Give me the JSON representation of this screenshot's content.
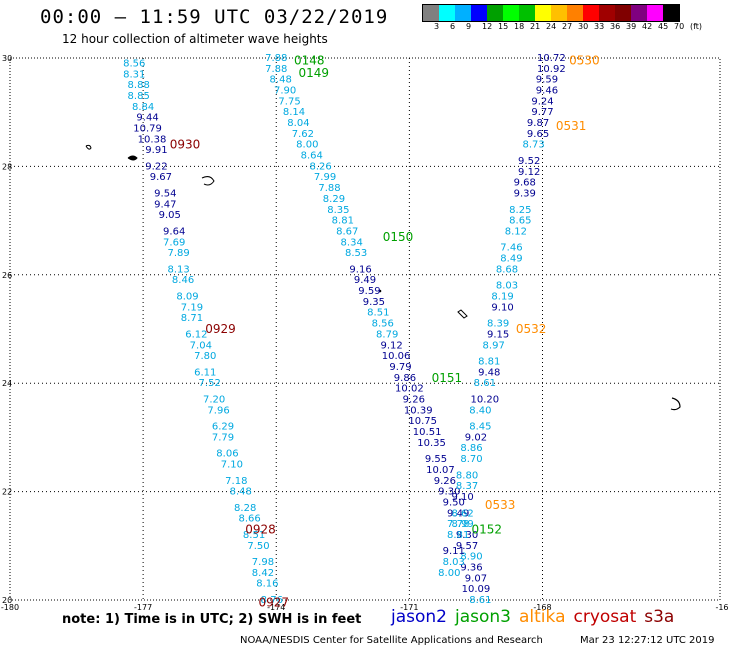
{
  "header": {
    "title": "00:00 – 11:59 UTC 03/22/2019",
    "subtitle": "12 hour collection of altimeter wave heights"
  },
  "legend": {
    "colors": [
      "#808080",
      "#00ffff",
      "#00b0ff",
      "#0000ff",
      "#00a000",
      "#00ff00",
      "#00c000",
      "#ffff00",
      "#ffc000",
      "#ff8000",
      "#ff0000",
      "#a00000",
      "#800000",
      "#800080",
      "#ff00ff",
      "#000000"
    ],
    "labels": [
      "3",
      "6",
      "9",
      "12",
      "15",
      "18",
      "21",
      "24",
      "27",
      "30",
      "33",
      "36",
      "39",
      "42",
      "45",
      "70",
      "(ft)"
    ]
  },
  "axes": {
    "x_ticks": [
      "-180",
      "-177",
      "-174",
      "-171",
      "-168",
      "-16"
    ],
    "y_ticks": [
      "30",
      "28",
      "26",
      "24",
      "22",
      "20"
    ]
  },
  "colors": {
    "jason2": "#0000c8",
    "jason3": "#00a000",
    "altika": "#ff8c00",
    "cryosat": "#c00000",
    "s3a": "#8b0000",
    "val_light": "#00a8e0",
    "val_dark": "#000090"
  },
  "tracks": [
    {
      "satellite": "cryosat",
      "tone": "mix",
      "points": [
        {
          "x": -177.2,
          "y": 29.9,
          "v": "8.56",
          "t": "l"
        },
        {
          "x": -177.2,
          "y": 29.7,
          "v": "8.31",
          "t": "l"
        },
        {
          "x": -177.1,
          "y": 29.5,
          "v": "8.88",
          "t": "l"
        },
        {
          "x": -177.1,
          "y": 29.3,
          "v": "8.85",
          "t": "l"
        },
        {
          "x": -177.0,
          "y": 29.1,
          "v": "8.84",
          "t": "l"
        },
        {
          "x": -176.9,
          "y": 28.9,
          "v": "9.44",
          "t": "d"
        },
        {
          "x": -176.9,
          "y": 28.7,
          "v": "10.79",
          "t": "d"
        },
        {
          "x": -176.8,
          "y": 28.5,
          "v": "10.38",
          "t": "d"
        },
        {
          "x": -176.7,
          "y": 28.3,
          "v": "9.91",
          "t": "d"
        },
        {
          "x": -176.7,
          "y": 28.0,
          "v": "9.22",
          "t": "d"
        },
        {
          "x": -176.6,
          "y": 27.8,
          "v": "9.67",
          "t": "d"
        },
        {
          "x": -176.5,
          "y": 27.5,
          "v": "9.54",
          "t": "d"
        },
        {
          "x": -176.5,
          "y": 27.3,
          "v": "9.47",
          "t": "d"
        },
        {
          "x": -176.4,
          "y": 27.1,
          "v": "9.05",
          "t": "d"
        },
        {
          "x": -176.3,
          "y": 26.8,
          "v": "9.64",
          "t": "d"
        },
        {
          "x": -176.3,
          "y": 26.6,
          "v": "7.69",
          "t": "l"
        },
        {
          "x": -176.2,
          "y": 26.4,
          "v": "7.89",
          "t": "l"
        },
        {
          "x": -176.2,
          "y": 26.1,
          "v": "8.13",
          "t": "l"
        },
        {
          "x": -176.1,
          "y": 25.9,
          "v": "8.46",
          "t": "l"
        },
        {
          "x": -176.0,
          "y": 25.6,
          "v": "8.09",
          "t": "l"
        },
        {
          "x": -175.9,
          "y": 25.4,
          "v": "7.19",
          "t": "l"
        },
        {
          "x": -175.9,
          "y": 25.2,
          "v": "8.71",
          "t": "l"
        },
        {
          "x": -175.8,
          "y": 24.9,
          "v": "6.12",
          "t": "l"
        },
        {
          "x": -175.7,
          "y": 24.7,
          "v": "7.04",
          "t": "l"
        },
        {
          "x": -175.6,
          "y": 24.5,
          "v": "7.80",
          "t": "l"
        },
        {
          "x": -175.6,
          "y": 24.2,
          "v": "6.11",
          "t": "l"
        },
        {
          "x": -175.5,
          "y": 24.0,
          "v": "7.52",
          "t": "l"
        },
        {
          "x": -175.4,
          "y": 23.7,
          "v": "7.20",
          "t": "l"
        },
        {
          "x": -175.3,
          "y": 23.5,
          "v": "7.96",
          "t": "l"
        },
        {
          "x": -175.2,
          "y": 23.2,
          "v": "6.29",
          "t": "l"
        },
        {
          "x": -175.2,
          "y": 23.0,
          "v": "7.79",
          "t": "l"
        },
        {
          "x": -175.1,
          "y": 22.7,
          "v": "8.06",
          "t": "l"
        },
        {
          "x": -175.0,
          "y": 22.5,
          "v": "7.10",
          "t": "l"
        },
        {
          "x": -174.9,
          "y": 22.2,
          "v": "7.18",
          "t": "l"
        },
        {
          "x": -174.8,
          "y": 22.0,
          "v": "8.48",
          "t": "l"
        },
        {
          "x": -174.7,
          "y": 21.7,
          "v": "8.28",
          "t": "l"
        },
        {
          "x": -174.6,
          "y": 21.5,
          "v": "8.66",
          "t": "l"
        },
        {
          "x": -174.5,
          "y": 21.2,
          "v": "8.51",
          "t": "l"
        },
        {
          "x": -174.4,
          "y": 21.0,
          "v": "7.50",
          "t": "l"
        },
        {
          "x": -174.3,
          "y": 20.7,
          "v": "7.98",
          "t": "l"
        },
        {
          "x": -174.3,
          "y": 20.5,
          "v": "8.42",
          "t": "l"
        },
        {
          "x": -174.2,
          "y": 20.3,
          "v": "8.16",
          "t": "l"
        },
        {
          "x": -174.1,
          "y": 20.0,
          "v": "8.76",
          "t": "l"
        }
      ]
    },
    {
      "satellite": "jason3",
      "tone": "mix",
      "points": [
        {
          "x": -174.0,
          "y": 30.0,
          "v": "7.88",
          "t": "l"
        },
        {
          "x": -174.0,
          "y": 29.8,
          "v": "7.88",
          "t": "l"
        },
        {
          "x": -173.9,
          "y": 29.6,
          "v": "8.48",
          "t": "l"
        },
        {
          "x": -173.8,
          "y": 29.4,
          "v": "7.90",
          "t": "l"
        },
        {
          "x": -173.7,
          "y": 29.2,
          "v": "7.75",
          "t": "l"
        },
        {
          "x": -173.6,
          "y": 29.0,
          "v": "8.14",
          "t": "l"
        },
        {
          "x": -173.5,
          "y": 28.8,
          "v": "8.04",
          "t": "l"
        },
        {
          "x": -173.4,
          "y": 28.6,
          "v": "7.62",
          "t": "l"
        },
        {
          "x": -173.3,
          "y": 28.4,
          "v": "8.00",
          "t": "l"
        },
        {
          "x": -173.2,
          "y": 28.2,
          "v": "8.64",
          "t": "l"
        },
        {
          "x": -173.0,
          "y": 28.0,
          "v": "8.26",
          "t": "l"
        },
        {
          "x": -172.9,
          "y": 27.8,
          "v": "7.99",
          "t": "l"
        },
        {
          "x": -172.8,
          "y": 27.6,
          "v": "7.88",
          "t": "l"
        },
        {
          "x": -172.7,
          "y": 27.4,
          "v": "8.29",
          "t": "l"
        },
        {
          "x": -172.6,
          "y": 27.2,
          "v": "8.35",
          "t": "l"
        },
        {
          "x": -172.5,
          "y": 27.0,
          "v": "8.81",
          "t": "l"
        },
        {
          "x": -172.4,
          "y": 26.8,
          "v": "8.67",
          "t": "l"
        },
        {
          "x": -172.3,
          "y": 26.6,
          "v": "8.34",
          "t": "l"
        },
        {
          "x": -172.2,
          "y": 26.4,
          "v": "8.53",
          "t": "l"
        },
        {
          "x": -172.1,
          "y": 26.1,
          "v": "9.16",
          "t": "d"
        },
        {
          "x": -172.0,
          "y": 25.9,
          "v": "9.49",
          "t": "d"
        },
        {
          "x": -171.9,
          "y": 25.7,
          "v": "9.59",
          "t": "d"
        },
        {
          "x": -171.8,
          "y": 25.5,
          "v": "9.35",
          "t": "d"
        },
        {
          "x": -171.7,
          "y": 25.3,
          "v": "8.51",
          "t": "l"
        },
        {
          "x": -171.6,
          "y": 25.1,
          "v": "8.56",
          "t": "l"
        },
        {
          "x": -171.5,
          "y": 24.9,
          "v": "8.79",
          "t": "l"
        },
        {
          "x": -171.4,
          "y": 24.7,
          "v": "9.12",
          "t": "d"
        },
        {
          "x": -171.3,
          "y": 24.5,
          "v": "10.06",
          "t": "d"
        },
        {
          "x": -171.2,
          "y": 24.3,
          "v": "9.79",
          "t": "d"
        },
        {
          "x": -171.1,
          "y": 24.1,
          "v": "9.86",
          "t": "d"
        },
        {
          "x": -171.0,
          "y": 23.9,
          "v": "10.02",
          "t": "d"
        },
        {
          "x": -170.9,
          "y": 23.7,
          "v": "9.26",
          "t": "d"
        },
        {
          "x": -170.8,
          "y": 23.5,
          "v": "10.39",
          "t": "d"
        },
        {
          "x": -170.7,
          "y": 23.3,
          "v": "10.75",
          "t": "d"
        },
        {
          "x": -170.6,
          "y": 23.1,
          "v": "10.51",
          "t": "d"
        },
        {
          "x": -170.5,
          "y": 22.9,
          "v": "10.35",
          "t": "d"
        },
        {
          "x": -170.4,
          "y": 22.6,
          "v": "9.55",
          "t": "d"
        },
        {
          "x": -170.3,
          "y": 22.4,
          "v": "10.07",
          "t": "d"
        },
        {
          "x": -170.2,
          "y": 22.2,
          "v": "9.26",
          "t": "d"
        },
        {
          "x": -170.1,
          "y": 22.0,
          "v": "9.30",
          "t": "d"
        },
        {
          "x": -170.0,
          "y": 21.8,
          "v": "9.50",
          "t": "d"
        },
        {
          "x": -169.9,
          "y": 21.6,
          "v": "9.49",
          "t": "d"
        },
        {
          "x": -169.8,
          "y": 21.4,
          "v": "8.99",
          "t": "l"
        },
        {
          "x": -169.7,
          "y": 21.2,
          "v": "9.30",
          "t": "d"
        },
        {
          "x": -169.7,
          "y": 21.0,
          "v": "9.57",
          "t": "d"
        },
        {
          "x": -169.6,
          "y": 20.8,
          "v": "8.90",
          "t": "l"
        },
        {
          "x": -169.6,
          "y": 20.6,
          "v": "9.36",
          "t": "d"
        },
        {
          "x": -169.5,
          "y": 20.4,
          "v": "9.07",
          "t": "d"
        },
        {
          "x": -169.5,
          "y": 20.2,
          "v": "10.09",
          "t": "d"
        },
        {
          "x": -169.4,
          "y": 20.0,
          "v": "8.61",
          "t": "l"
        }
      ]
    },
    {
      "satellite": "altika",
      "tone": "mix",
      "points": [
        {
          "x": -167.8,
          "y": 30.0,
          "v": "10.72",
          "t": "d"
        },
        {
          "x": -167.8,
          "y": 29.8,
          "v": "10.92",
          "t": "d"
        },
        {
          "x": -167.9,
          "y": 29.6,
          "v": "9.59",
          "t": "d"
        },
        {
          "x": -167.9,
          "y": 29.4,
          "v": "9.46",
          "t": "d"
        },
        {
          "x": -168.0,
          "y": 29.2,
          "v": "9.24",
          "t": "d"
        },
        {
          "x": -168.0,
          "y": 29.0,
          "v": "9.77",
          "t": "d"
        },
        {
          "x": -168.1,
          "y": 28.8,
          "v": "9.87",
          "t": "d"
        },
        {
          "x": -168.1,
          "y": 28.6,
          "v": "9.65",
          "t": "d"
        },
        {
          "x": -168.2,
          "y": 28.4,
          "v": "8.73",
          "t": "l"
        },
        {
          "x": -168.3,
          "y": 28.1,
          "v": "9.52",
          "t": "d"
        },
        {
          "x": -168.3,
          "y": 27.9,
          "v": "9.12",
          "t": "d"
        },
        {
          "x": -168.4,
          "y": 27.7,
          "v": "9.68",
          "t": "d"
        },
        {
          "x": -168.4,
          "y": 27.5,
          "v": "9.39",
          "t": "d"
        },
        {
          "x": -168.5,
          "y": 27.2,
          "v": "8.25",
          "t": "l"
        },
        {
          "x": -168.5,
          "y": 27.0,
          "v": "8.65",
          "t": "l"
        },
        {
          "x": -168.6,
          "y": 26.8,
          "v": "8.12",
          "t": "l"
        },
        {
          "x": -168.7,
          "y": 26.5,
          "v": "7.46",
          "t": "l"
        },
        {
          "x": -168.7,
          "y": 26.3,
          "v": "8.49",
          "t": "l"
        },
        {
          "x": -168.8,
          "y": 26.1,
          "v": "8.68",
          "t": "l"
        },
        {
          "x": -168.8,
          "y": 25.8,
          "v": "8.03",
          "t": "l"
        },
        {
          "x": -168.9,
          "y": 25.6,
          "v": "8.19",
          "t": "l"
        },
        {
          "x": -168.9,
          "y": 25.4,
          "v": "9.10",
          "t": "d"
        },
        {
          "x": -169.0,
          "y": 25.1,
          "v": "8.39",
          "t": "l"
        },
        {
          "x": -169.0,
          "y": 24.9,
          "v": "9.15",
          "t": "d"
        },
        {
          "x": -169.1,
          "y": 24.7,
          "v": "8.97",
          "t": "l"
        },
        {
          "x": -169.2,
          "y": 24.4,
          "v": "8.81",
          "t": "l"
        },
        {
          "x": -169.2,
          "y": 24.2,
          "v": "9.48",
          "t": "d"
        },
        {
          "x": -169.3,
          "y": 24.0,
          "v": "8.61",
          "t": "l"
        },
        {
          "x": -169.3,
          "y": 23.7,
          "v": "10.20",
          "t": "d"
        },
        {
          "x": -169.4,
          "y": 23.5,
          "v": "8.40",
          "t": "l"
        },
        {
          "x": -169.4,
          "y": 23.2,
          "v": "8.45",
          "t": "l"
        },
        {
          "x": -169.5,
          "y": 23.0,
          "v": "9.02",
          "t": "d"
        },
        {
          "x": -169.6,
          "y": 22.8,
          "v": "8.86",
          "t": "l"
        },
        {
          "x": -169.6,
          "y": 22.6,
          "v": "8.70",
          "t": "l"
        },
        {
          "x": -169.7,
          "y": 22.3,
          "v": "8.80",
          "t": "l"
        },
        {
          "x": -169.7,
          "y": 22.1,
          "v": "8.37",
          "t": "l"
        },
        {
          "x": -169.8,
          "y": 21.9,
          "v": "9.10",
          "t": "d"
        },
        {
          "x": -169.8,
          "y": 21.6,
          "v": "8.62",
          "t": "l"
        },
        {
          "x": -169.9,
          "y": 21.4,
          "v": "7.78",
          "t": "l"
        },
        {
          "x": -169.9,
          "y": 21.2,
          "v": "8.81",
          "t": "l"
        },
        {
          "x": -170.0,
          "y": 20.9,
          "v": "9.11",
          "t": "d"
        },
        {
          "x": -170.0,
          "y": 20.7,
          "v": "8.03",
          "t": "l"
        },
        {
          "x": -170.1,
          "y": 20.5,
          "v": "8.00",
          "t": "l"
        }
      ]
    }
  ],
  "time_labels": [
    {
      "x": -173.6,
      "y": 29.95,
      "v": "0148",
      "c": "jason3"
    },
    {
      "x": -173.5,
      "y": 29.72,
      "v": "0149",
      "c": "jason3"
    },
    {
      "x": -171.6,
      "y": 26.7,
      "v": "0150",
      "c": "jason3"
    },
    {
      "x": -170.5,
      "y": 24.1,
      "v": "0151",
      "c": "jason3"
    },
    {
      "x": -169.6,
      "y": 21.3,
      "v": "0152",
      "c": "jason3"
    },
    {
      "x": -176.4,
      "y": 28.4,
      "v": "0930",
      "c": "s3a"
    },
    {
      "x": -175.6,
      "y": 25.0,
      "v": "0929",
      "c": "s3a"
    },
    {
      "x": -174.7,
      "y": 21.3,
      "v": "0928",
      "c": "s3a"
    },
    {
      "x": -174.4,
      "y": 19.95,
      "v": "0927",
      "c": "s3a"
    },
    {
      "x": -167.4,
      "y": 29.95,
      "v": "0530",
      "c": "altika"
    },
    {
      "x": -167.7,
      "y": 28.75,
      "v": "0531",
      "c": "altika"
    },
    {
      "x": -168.6,
      "y": 25.0,
      "v": "0532",
      "c": "altika"
    },
    {
      "x": -169.3,
      "y": 21.75,
      "v": "0533",
      "c": "altika"
    }
  ],
  "footer": {
    "note": "note:  1)  Time is in UTC;  2)  SWH is in feet",
    "satellites": [
      {
        "name": "jason2",
        "c": "jason2"
      },
      {
        "name": "jason3",
        "c": "jason3"
      },
      {
        "name": "altika",
        "c": "altika"
      },
      {
        "name": "cryosat",
        "c": "cryosat"
      },
      {
        "name": "s3a",
        "c": "s3a"
      }
    ],
    "credit": "NOAA/NESDIS Center for Satellite Applications and Research",
    "generated": "Mar 23 12:27:12 UTC 2019"
  }
}
